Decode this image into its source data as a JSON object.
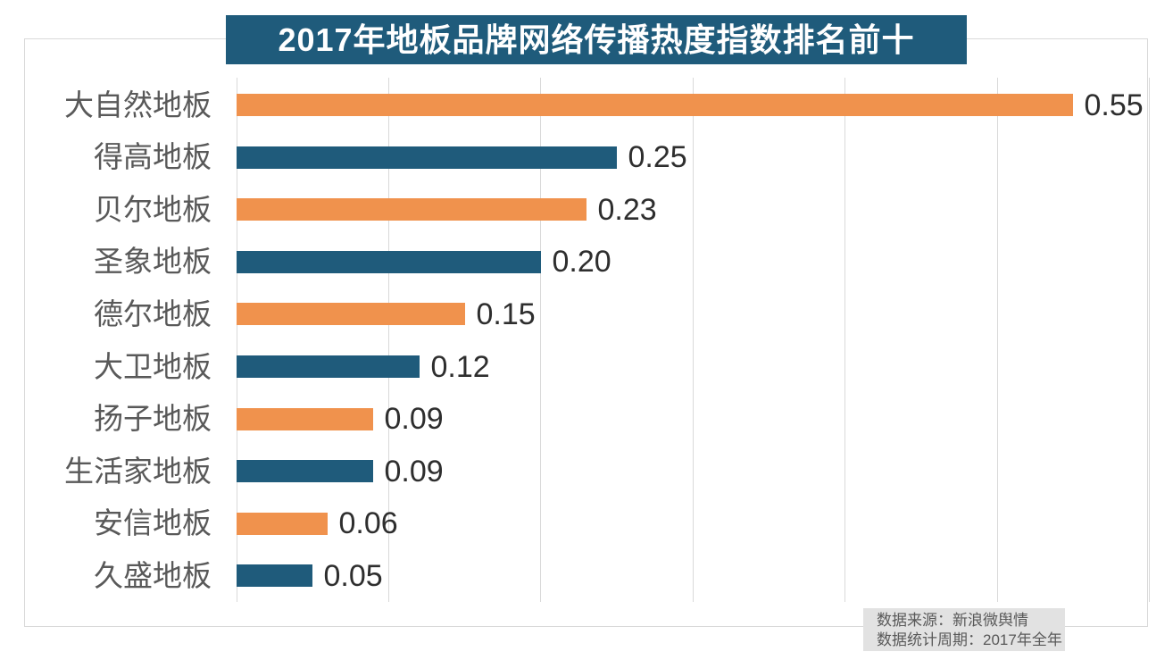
{
  "title": "2017年地板品牌网络传播热度指数排名前十",
  "chart_data": {
    "type": "bar",
    "orientation": "horizontal",
    "title": "2017年地板品牌网络传播热度指数排名前十",
    "categories": [
      "大自然地板",
      "得高地板",
      "贝尔地板",
      "圣象地板",
      "德尔地板",
      "大卫地板",
      "扬子地板",
      "生活家地板",
      "安信地板",
      "久盛地板"
    ],
    "values": [
      0.55,
      0.25,
      0.23,
      0.2,
      0.15,
      0.12,
      0.09,
      0.09,
      0.06,
      0.05
    ],
    "value_labels": [
      "0.55",
      "0.25",
      "0.23",
      "0.20",
      "0.15",
      "0.12",
      "0.09",
      "0.09",
      "0.06",
      "0.05"
    ],
    "xlim": [
      0,
      0.6
    ],
    "gridline_step": 0.1,
    "grid": "vertical-gridlines-only",
    "legend": "none",
    "xlabel": "",
    "ylabel": ""
  },
  "colors": {
    "bar_orange": "#f0924d",
    "bar_teal": "#1f5b7b",
    "banner_bg": "#1f5b7b",
    "gridline": "#d9d9d9",
    "frame_border": "#d9d9d9",
    "category_text": "#595959",
    "value_text": "#2e2e2e",
    "source_bg": "#e2e2e2",
    "source_text": "#595959"
  },
  "source_note": {
    "line1": "数据来源：新浪微舆情",
    "line2": "数据统计周期：2017年全年"
  }
}
